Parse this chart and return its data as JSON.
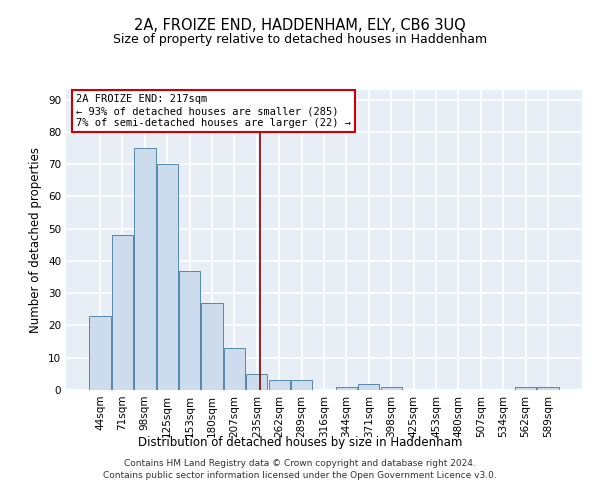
{
  "title1": "2A, FROIZE END, HADDENHAM, ELY, CB6 3UQ",
  "title2": "Size of property relative to detached houses in Haddenham",
  "xlabel": "Distribution of detached houses by size in Haddenham",
  "ylabel": "Number of detached properties",
  "footnote1": "Contains HM Land Registry data © Crown copyright and database right 2024.",
  "footnote2": "Contains public sector information licensed under the Open Government Licence v3.0.",
  "bar_labels": [
    "44sqm",
    "71sqm",
    "98sqm",
    "125sqm",
    "153sqm",
    "180sqm",
    "207sqm",
    "235sqm",
    "262sqm",
    "289sqm",
    "316sqm",
    "344sqm",
    "371sqm",
    "398sqm",
    "425sqm",
    "453sqm",
    "480sqm",
    "507sqm",
    "534sqm",
    "562sqm",
    "589sqm"
  ],
  "bar_values": [
    23,
    48,
    75,
    70,
    37,
    27,
    13,
    5,
    3,
    3,
    0,
    1,
    2,
    1,
    0,
    0,
    0,
    0,
    0,
    1,
    1
  ],
  "bar_color": "#ccdcec",
  "bar_edge_color": "#5588aa",
  "bar_edge_width": 0.7,
  "vline_x": 7.15,
  "vline_color": "#8b0000",
  "annotation_line1": "2A FROIZE END: 217sqm",
  "annotation_line2": "← 93% of detached houses are smaller (285)",
  "annotation_line3": "7% of semi-detached houses are larger (22) →",
  "annotation_box_color": "white",
  "annotation_box_edge_color": "#cc0000",
  "ylim": [
    0,
    93
  ],
  "yticks": [
    0,
    10,
    20,
    30,
    40,
    50,
    60,
    70,
    80,
    90
  ],
  "background_color": "#e8eef5",
  "grid_color": "white",
  "title_fontsize": 10.5,
  "subtitle_fontsize": 9,
  "axis_label_fontsize": 8.5,
  "tick_fontsize": 7.5,
  "footnote_fontsize": 6.5
}
